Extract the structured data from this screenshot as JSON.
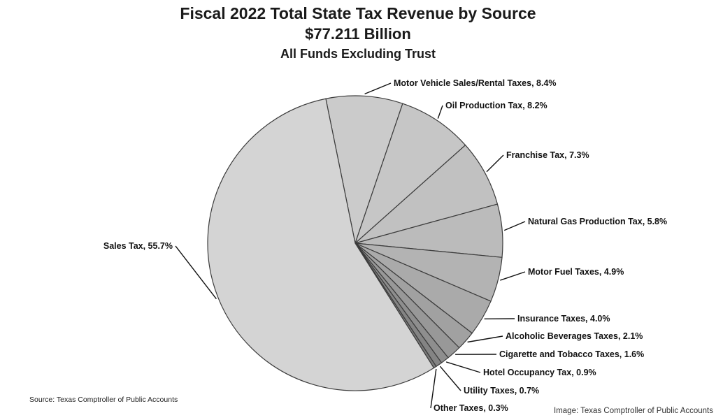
{
  "chart_data": {
    "type": "pie",
    "title": "Fiscal 2022 Total State Tax Revenue by Source",
    "subtitle": "$77.211 Billion",
    "subtitle2": "All Funds Excluding Trust",
    "unit": "%",
    "slices": [
      {
        "label": "Motor Vehicle Sales/Rental Taxes, 8.4%",
        "value": 8.4,
        "color": "#cbcbcb"
      },
      {
        "label": "Oil Production Tax, 8.2%",
        "value": 8.2,
        "color": "#c6c6c6"
      },
      {
        "label": "Franchise Tax, 7.3%",
        "value": 7.3,
        "color": "#c1c1c1"
      },
      {
        "label": "Natural Gas Production Tax, 5.8%",
        "value": 5.8,
        "color": "#bbbbbb"
      },
      {
        "label": "Motor Fuel Taxes, 4.9%",
        "value": 4.9,
        "color": "#b3b3b3"
      },
      {
        "label": "Insurance Taxes, 4.0%",
        "value": 4.0,
        "color": "#aaaaaa"
      },
      {
        "label": "Alcoholic Beverages Taxes, 2.1%",
        "value": 2.1,
        "color": "#a1a1a1"
      },
      {
        "label": "Cigarette and Tobacco Taxes, 1.6%",
        "value": 1.6,
        "color": "#989898"
      },
      {
        "label": "Hotel Occupancy Tax, 0.9%",
        "value": 0.9,
        "color": "#8e8e8e"
      },
      {
        "label": "Utility Taxes, 0.7%",
        "value": 0.7,
        "color": "#848484"
      },
      {
        "label": "Other Taxes, 0.3%",
        "value": 0.3,
        "color": "#7a7a7a"
      },
      {
        "label": "Sales Tax, 55.7%",
        "value": 55.7,
        "color": "#d4d4d4"
      }
    ]
  },
  "source_note": "Source: Texas Comptroller of Public Accounts",
  "image_credit": "Image: Texas Comptroller of Public Accounts"
}
